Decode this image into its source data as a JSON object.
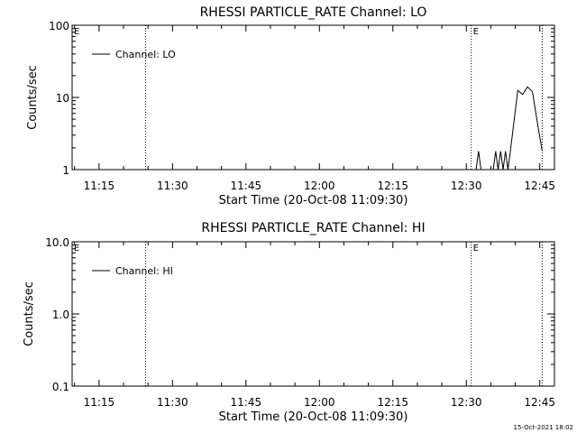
{
  "footer": {
    "timestamp": "15-Oct-2021 18:02"
  },
  "chart_data": [
    {
      "type": "line",
      "title": "RHESSI PARTICLE_RATE Channel: LO",
      "xlabel": "Start Time (20-Oct-08 11:09:30)",
      "ylabel": "Counts/sec",
      "y_scale": "log",
      "ylim": [
        1,
        100
      ],
      "xlim": [
        "11:09:30",
        "12:48:00"
      ],
      "xticks": [
        "11:15",
        "11:30",
        "11:45",
        "12:00",
        "12:15",
        "12:30",
        "12:45"
      ],
      "yticks": [
        "1",
        "10",
        "100"
      ],
      "legend": {
        "position": "top-left",
        "entries": [
          "Channel: LO"
        ]
      },
      "markers": [
        {
          "label": "E",
          "x": "11:09:30"
        },
        {
          "label": "",
          "x": "11:24:30"
        },
        {
          "label": "E",
          "x": "12:31:00"
        },
        {
          "label": "",
          "x": "12:45:30"
        }
      ],
      "series": [
        {
          "name": "Channel: LO",
          "x": [
            "12:32:00",
            "12:32:30",
            "12:33:00",
            "12:35:30",
            "12:36:00",
            "12:36:30",
            "12:37:00",
            "12:37:30",
            "12:38:00",
            "12:38:30",
            "12:39:00",
            "12:40:30",
            "12:41:30",
            "12:42:30",
            "12:43:30",
            "12:44:30",
            "12:45:30"
          ],
          "y": [
            1.0,
            1.8,
            1.0,
            1.0,
            1.8,
            1.0,
            1.8,
            1.0,
            1.8,
            1.0,
            1.8,
            12.5,
            11.0,
            14.0,
            12.0,
            4.5,
            1.8
          ]
        }
      ]
    },
    {
      "type": "line",
      "title": "RHESSI PARTICLE_RATE Channel: HI",
      "xlabel": "Start Time (20-Oct-08 11:09:30)",
      "ylabel": "Counts/sec",
      "y_scale": "log",
      "ylim": [
        0.1,
        10
      ],
      "xlim": [
        "11:09:30",
        "12:48:00"
      ],
      "xticks": [
        "11:15",
        "11:30",
        "11:45",
        "12:00",
        "12:15",
        "12:30",
        "12:45"
      ],
      "yticks": [
        "0.1",
        "1.0",
        "10.0"
      ],
      "legend": {
        "position": "top-left",
        "entries": [
          "Channel: HI"
        ]
      },
      "markers": [
        {
          "label": "E",
          "x": "11:09:30"
        },
        {
          "label": "",
          "x": "11:24:30"
        },
        {
          "label": "E",
          "x": "12:31:00"
        },
        {
          "label": "",
          "x": "12:45:30"
        }
      ],
      "series": [
        {
          "name": "Channel: HI",
          "x": [],
          "y": []
        }
      ]
    }
  ]
}
